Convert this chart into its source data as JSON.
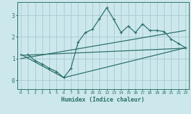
{
  "xlabel": "Humidex (Indice chaleur)",
  "bg_color": "#cce8ec",
  "grid_color": "#aaccd4",
  "line_color": "#2a6e68",
  "xlim": [
    -0.5,
    23.5
  ],
  "ylim": [
    -0.4,
    3.6
  ],
  "yticks": [
    0,
    1,
    2,
    3
  ],
  "xticks": [
    0,
    1,
    2,
    3,
    4,
    5,
    6,
    7,
    8,
    9,
    10,
    11,
    12,
    13,
    14,
    15,
    16,
    17,
    18,
    19,
    20,
    21,
    22,
    23
  ],
  "line1_x": [
    1,
    2,
    3,
    4,
    5,
    6,
    7,
    8,
    9,
    10,
    11,
    12,
    13,
    14,
    15,
    16,
    17,
    18,
    19,
    20,
    21,
    22,
    23
  ],
  "line1_y": [
    1.2,
    0.9,
    0.75,
    0.55,
    0.4,
    0.12,
    0.55,
    1.75,
    2.2,
    2.35,
    2.85,
    3.35,
    2.8,
    2.2,
    2.5,
    2.2,
    2.6,
    2.3,
    2.3,
    2.25,
    1.9,
    1.7,
    1.5
  ],
  "line2_x": [
    0,
    6,
    23
  ],
  "line2_y": [
    1.2,
    0.12,
    1.5
  ],
  "line3_x": [
    0,
    23
  ],
  "line3_y": [
    1.0,
    2.3
  ],
  "line4_x": [
    0,
    23
  ],
  "line4_y": [
    1.15,
    1.48
  ]
}
